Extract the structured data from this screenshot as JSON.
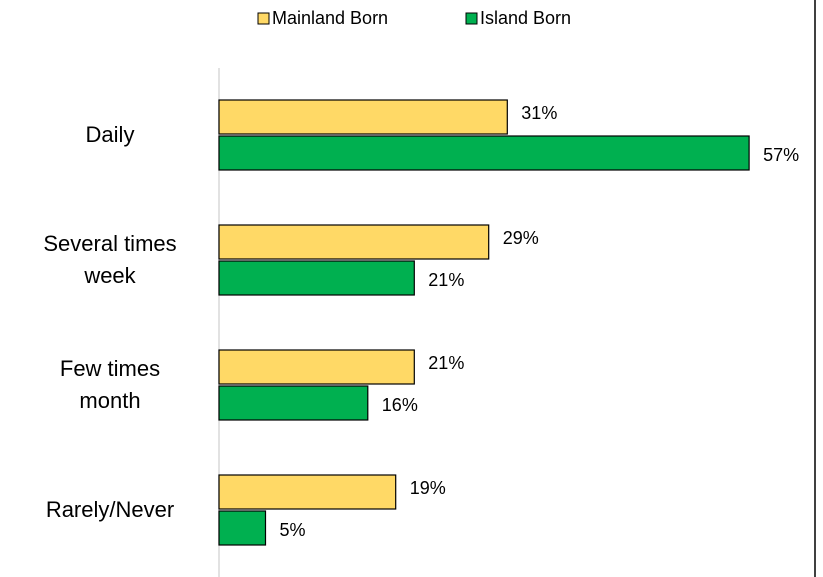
{
  "chart_data": {
    "type": "bar",
    "orientation": "horizontal",
    "categories": [
      "Daily",
      "Several times week",
      "Few times month",
      "Rarely/Never"
    ],
    "series": [
      {
        "name": "Mainland Born",
        "color": "#ffd966",
        "values": [
          31,
          29,
          21,
          19
        ],
        "value_labels": [
          "31%",
          "29%",
          "21%",
          "19%"
        ]
      },
      {
        "name": "Island Born",
        "color": "#00b050",
        "values": [
          57,
          21,
          16,
          5
        ],
        "value_labels": [
          "57%",
          "21%",
          "16%",
          "5%"
        ]
      }
    ],
    "xlim": [
      0,
      60
    ],
    "legend": "top"
  }
}
